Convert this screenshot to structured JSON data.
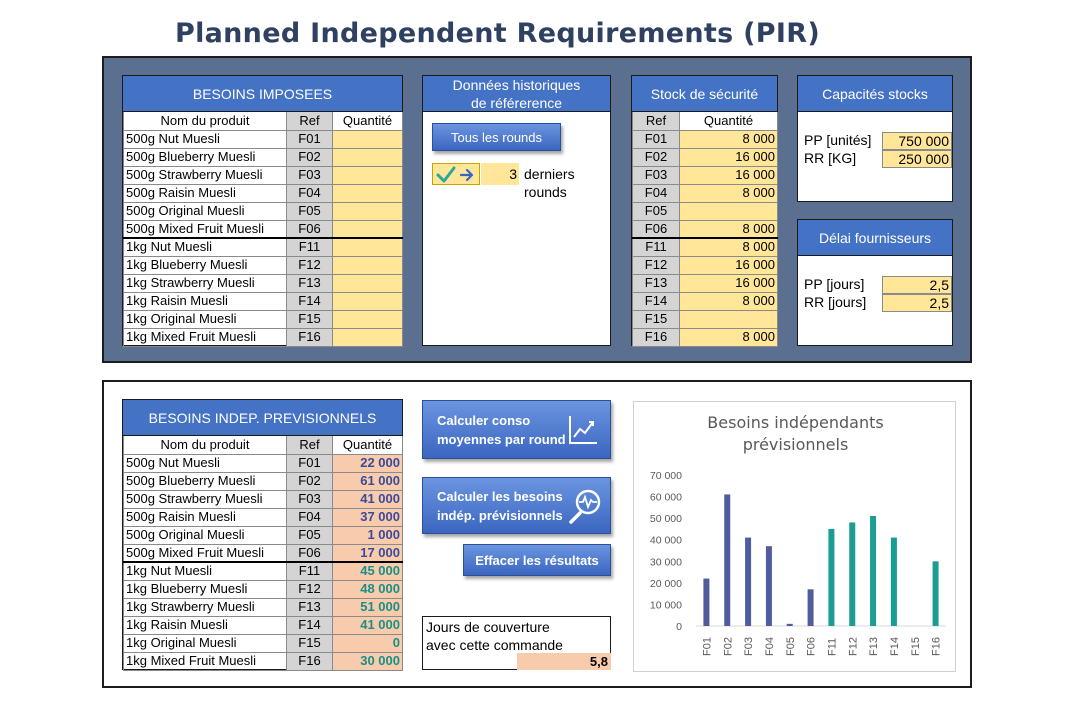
{
  "page_title": "Planned Independent Requirements (PIR)",
  "besoins_imposees": {
    "header": "BESOINS IMPOSEES",
    "col_name": "Nom du produit",
    "col_ref": "Ref",
    "col_qty": "Quantité",
    "rows": [
      {
        "name": "500g Nut Muesli",
        "ref": "F01",
        "qty": ""
      },
      {
        "name": "500g Blueberry Muesli",
        "ref": "F02",
        "qty": ""
      },
      {
        "name": "500g Strawberry Muesli",
        "ref": "F03",
        "qty": ""
      },
      {
        "name": "500g Raisin Muesli",
        "ref": "F04",
        "qty": ""
      },
      {
        "name": "500g Original Muesli",
        "ref": "F05",
        "qty": ""
      },
      {
        "name": "500g Mixed Fruit Muesli",
        "ref": "F06",
        "qty": ""
      },
      {
        "name": "1kg Nut Muesli",
        "ref": "F11",
        "qty": ""
      },
      {
        "name": "1kg Blueberry Muesli",
        "ref": "F12",
        "qty": ""
      },
      {
        "name": "1kg Strawberry Muesli",
        "ref": "F13",
        "qty": ""
      },
      {
        "name": "1kg Raisin Muesli",
        "ref": "F14",
        "qty": ""
      },
      {
        "name": "1kg Original Muesli",
        "ref": "F15",
        "qty": ""
      },
      {
        "name": "1kg Mixed Fruit Muesli",
        "ref": "F16",
        "qty": ""
      }
    ]
  },
  "historique": {
    "header_line1": "Données historiques",
    "header_line2": "de référerence",
    "all_rounds_button": "Tous les rounds",
    "rounds_value": "3",
    "rounds_label_line1": "derniers",
    "rounds_label_line2": "rounds"
  },
  "stock_securite": {
    "header": "Stock de sécurité",
    "col_ref": "Ref",
    "col_qty": "Quantité",
    "rows": [
      {
        "ref": "F01",
        "qty": "8 000"
      },
      {
        "ref": "F02",
        "qty": "16 000"
      },
      {
        "ref": "F03",
        "qty": "16 000"
      },
      {
        "ref": "F04",
        "qty": "8 000"
      },
      {
        "ref": "F05",
        "qty": ""
      },
      {
        "ref": "F06",
        "qty": "8 000"
      },
      {
        "ref": "F11",
        "qty": "8 000"
      },
      {
        "ref": "F12",
        "qty": "16 000"
      },
      {
        "ref": "F13",
        "qty": "16 000"
      },
      {
        "ref": "F14",
        "qty": "8 000"
      },
      {
        "ref": "F15",
        "qty": ""
      },
      {
        "ref": "F16",
        "qty": "8 000"
      }
    ]
  },
  "capacites": {
    "header": "Capacités stocks",
    "pp_label": "PP [unités]",
    "pp_value": "750 000",
    "rr_label": "RR [KG]",
    "rr_value": "250 000"
  },
  "delai": {
    "header": "Délai fournisseurs",
    "pp_label": "PP [jours]",
    "pp_value": "2,5",
    "rr_label": "RR [jours]",
    "rr_value": "2,5"
  },
  "besoins_indep": {
    "header": "BESOINS INDEP. PREVISIONNELS",
    "col_name": "Nom du produit",
    "col_ref": "Ref",
    "col_qty": "Quantité",
    "rows": [
      {
        "name": "500g Nut Muesli",
        "ref": "F01",
        "qty": "22 000"
      },
      {
        "name": "500g Blueberry Muesli",
        "ref": "F02",
        "qty": "61 000"
      },
      {
        "name": "500g Strawberry Muesli",
        "ref": "F03",
        "qty": "41 000"
      },
      {
        "name": "500g Raisin Muesli",
        "ref": "F04",
        "qty": "37 000"
      },
      {
        "name": "500g Original Muesli",
        "ref": "F05",
        "qty": "1 000"
      },
      {
        "name": "500g Mixed Fruit Muesli",
        "ref": "F06",
        "qty": "17 000"
      },
      {
        "name": "1kg Nut Muesli",
        "ref": "F11",
        "qty": "45 000"
      },
      {
        "name": "1kg Blueberry Muesli",
        "ref": "F12",
        "qty": "48 000"
      },
      {
        "name": "1kg Strawberry Muesli",
        "ref": "F13",
        "qty": "51 000"
      },
      {
        "name": "1kg Raisin Muesli",
        "ref": "F14",
        "qty": "41 000"
      },
      {
        "name": "1kg Original Muesli",
        "ref": "F15",
        "qty": "0"
      },
      {
        "name": "1kg Mixed Fruit Muesli",
        "ref": "F16",
        "qty": "30 000"
      }
    ]
  },
  "buttons": {
    "calc_conso_line1": "Calculer conso",
    "calc_conso_line2": "moyennes par round",
    "calc_besoins_line1": "Calculer les besoins",
    "calc_besoins_line2": "indép. prévisionnels",
    "effacer": "Effacer les résultats"
  },
  "couverture": {
    "label_line1": "Jours de couverture",
    "label_line2": "avec cette commande",
    "value": "5,8"
  },
  "colors": {
    "header_blue": "#4472c4",
    "bar_500g": "#4f5d9e",
    "bar_1kg": "#1a9e93",
    "input_yellow": "#ffe699",
    "result_peach": "#f8cbad"
  },
  "chart_data": {
    "type": "bar",
    "title": "Besoins indépendants prévisionnels",
    "title_line1": "Besoins indépendants",
    "title_line2": "prévisionnels",
    "categories": [
      "F01",
      "F02",
      "F03",
      "F04",
      "F05",
      "F06",
      "F11",
      "F12",
      "F13",
      "F14",
      "F15",
      "F16"
    ],
    "values": [
      22000,
      61000,
      41000,
      37000,
      1000,
      17000,
      45000,
      48000,
      51000,
      41000,
      0,
      30000
    ],
    "ylim": [
      0,
      70000
    ],
    "yticks": [
      0,
      10000,
      20000,
      30000,
      40000,
      50000,
      60000,
      70000
    ],
    "ytick_labels": [
      "0",
      "10 000",
      "20 000",
      "30 000",
      "40 000",
      "50 000",
      "60 000",
      "70 000"
    ],
    "grid": false,
    "legend": "none"
  }
}
